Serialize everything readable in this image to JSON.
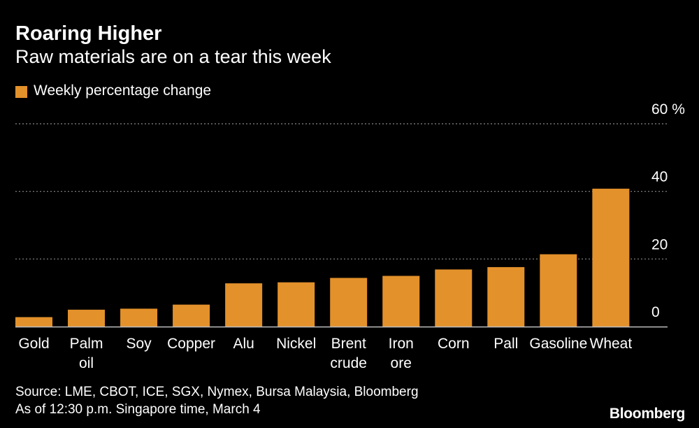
{
  "header": {
    "title": "Roaring Higher",
    "subtitle": "Raw materials are on a tear this week"
  },
  "colors": {
    "bar": "#E3912B",
    "grid": "#8a8a8a",
    "background": "#000000",
    "text": "#ffffff"
  },
  "chart_data": {
    "type": "bar",
    "title": "Roaring Higher",
    "subtitle": "Raw materials are on a tear this week",
    "legend": [
      "Weekly percentage change"
    ],
    "legend_position": "top-left",
    "categories": [
      [
        "Gold"
      ],
      [
        "Palm",
        "oil"
      ],
      [
        "Soy"
      ],
      [
        "Copper"
      ],
      [
        "Alu"
      ],
      [
        "Nickel"
      ],
      [
        "Brent",
        "crude"
      ],
      [
        "Iron",
        "ore"
      ],
      [
        "Corn"
      ],
      [
        "Pall"
      ],
      [
        "Gasoline"
      ],
      [
        "Wheat"
      ]
    ],
    "values": [
      2.8,
      5.0,
      5.3,
      6.5,
      12.8,
      13.1,
      14.4,
      15.0,
      16.9,
      17.6,
      21.4,
      40.8
    ],
    "y_ticks": [
      "0",
      "20",
      "40",
      "60 %"
    ],
    "y_tick_values": [
      0,
      20,
      40,
      60
    ],
    "ylim": [
      0,
      60
    ],
    "grid": true,
    "xlabel": "",
    "ylabel": "%"
  },
  "footer": {
    "source_line1": "Source: LME, CBOT, ICE, SGX, Nymex, Bursa Malaysia, Bloomberg",
    "source_line2": "As of 12:30 p.m. Singapore time, March 4",
    "logo": "Bloomberg"
  }
}
